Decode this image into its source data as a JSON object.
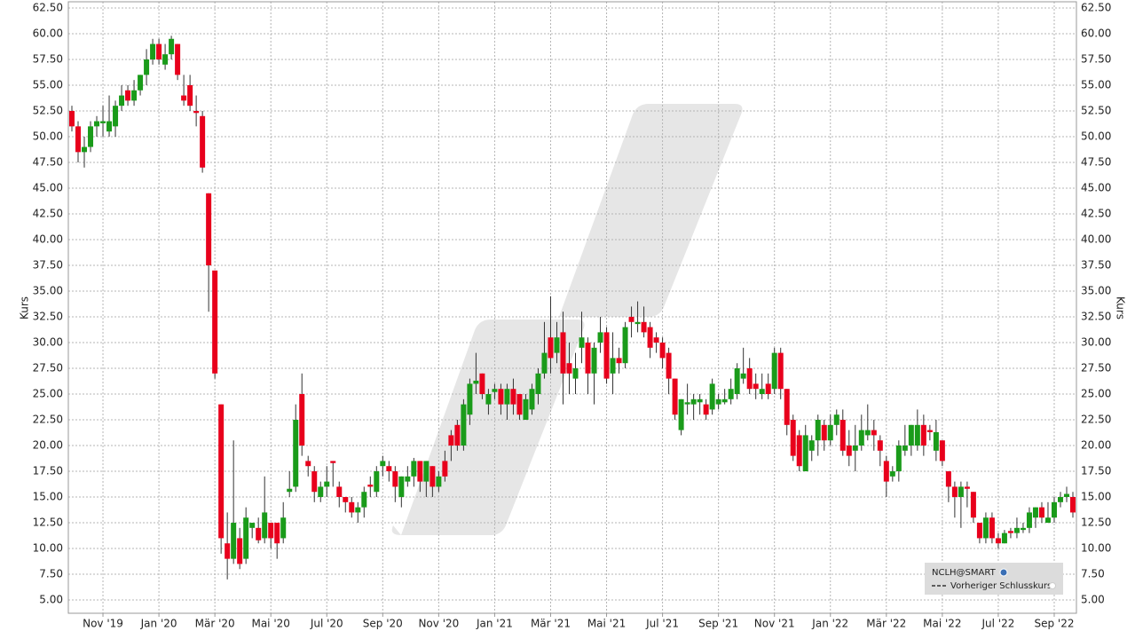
{
  "chart_data": {
    "type": "candlestick",
    "y_label": "Kurs",
    "up_color": "#1a9b1a",
    "down_color": "#e8001c",
    "ylim": [
      3.71,
      63.1
    ],
    "yticks": [
      {
        "value": 5,
        "label": "5.00"
      },
      {
        "value": 7.5,
        "label": "7.50"
      },
      {
        "value": 10,
        "label": "10.00"
      },
      {
        "value": 12.5,
        "label": "12.50"
      },
      {
        "value": 15,
        "label": "15.00"
      },
      {
        "value": 17.5,
        "label": "17.50"
      },
      {
        "value": 20,
        "label": "20.00"
      },
      {
        "value": 22.5,
        "label": "22.50"
      },
      {
        "value": 25,
        "label": "25.00"
      },
      {
        "value": 27.5,
        "label": "27.50"
      },
      {
        "value": 30,
        "label": "30.00"
      },
      {
        "value": 32.5,
        "label": "32.50"
      },
      {
        "value": 35,
        "label": "35.00"
      },
      {
        "value": 37.5,
        "label": "37.50"
      },
      {
        "value": 40,
        "label": "40.00"
      },
      {
        "value": 42.5,
        "label": "42.50"
      },
      {
        "value": 45,
        "label": "45.00"
      },
      {
        "value": 47.5,
        "label": "47.50"
      },
      {
        "value": 50,
        "label": "50.00"
      },
      {
        "value": 52.5,
        "label": "52.50"
      },
      {
        "value": 55,
        "label": "55.00"
      },
      {
        "value": 57.5,
        "label": "57.50"
      },
      {
        "value": 60,
        "label": "60.00"
      },
      {
        "value": 62.5,
        "label": "62.50"
      }
    ],
    "grid": true,
    "legend": {
      "position": "lower right",
      "symbol": "NCLH@SMART",
      "previous_close": "Vorheriger Schlusskurs"
    },
    "categories": [
      null,
      null,
      null,
      null,
      null,
      "Nov '19",
      null,
      null,
      null,
      null,
      null,
      null,
      null,
      null,
      "Jan '20",
      null,
      null,
      null,
      null,
      null,
      null,
      null,
      null,
      "Mär '20",
      null,
      null,
      null,
      null,
      null,
      null,
      null,
      null,
      "Mai '20",
      null,
      null,
      null,
      null,
      null,
      null,
      null,
      null,
      "Jul '20",
      null,
      null,
      null,
      null,
      null,
      null,
      null,
      null,
      "Sep '20",
      null,
      null,
      null,
      null,
      null,
      null,
      null,
      null,
      "Nov '20",
      null,
      null,
      null,
      null,
      null,
      null,
      null,
      null,
      "Jan '21",
      null,
      null,
      null,
      null,
      null,
      null,
      null,
      null,
      "Mär '21",
      null,
      null,
      null,
      null,
      null,
      null,
      null,
      null,
      "Mai '21",
      null,
      null,
      null,
      null,
      null,
      null,
      null,
      null,
      "Jul '21",
      null,
      null,
      null,
      null,
      null,
      null,
      null,
      null,
      "Sep '21",
      null,
      null,
      null,
      null,
      null,
      null,
      null,
      null,
      "Nov '21",
      null,
      null,
      null,
      null,
      null,
      null,
      null,
      null,
      "Jan '22",
      null,
      null,
      null,
      null,
      null,
      null,
      null,
      null,
      "Mär '22",
      null,
      null,
      null,
      null,
      null,
      null,
      null,
      null,
      "Mai '22",
      null,
      null,
      null,
      null,
      null,
      null,
      null,
      null,
      "Jul '22",
      null,
      null,
      null,
      null,
      null,
      null,
      null,
      null,
      "Sep '22",
      null,
      null,
      null
    ],
    "open": [
      52.5,
      51,
      48.5,
      49,
      51,
      51.3,
      50.5,
      51,
      53,
      54.5,
      53.5,
      54.5,
      56,
      57.5,
      59,
      57,
      58,
      59,
      54,
      55,
      52.5,
      52,
      44.5,
      37,
      24,
      10.5,
      9,
      11,
      9,
      12,
      12,
      11,
      12.5,
      12.5,
      11,
      15.5,
      16,
      25,
      18.5,
      17.5,
      15,
      16,
      18.5,
      16,
      15,
      14.5,
      13.5,
      14,
      16.2,
      15.5,
      18,
      18,
      17.5,
      15,
      16.5,
      17,
      18.5,
      16.5,
      18,
      16,
      18.5,
      21,
      22,
      20,
      23,
      26,
      27,
      24,
      25.2,
      25.5,
      24,
      25.5,
      25,
      22.5,
      23.5,
      25,
      27,
      30.5,
      29,
      31,
      28,
      26.5,
      29.5,
      30,
      27,
      30,
      31,
      27,
      28.5,
      28,
      32.5,
      31.8,
      32,
      31.5,
      30.5,
      30,
      29,
      26.5,
      21.5,
      24,
      24,
      24.2,
      24,
      23.5,
      24,
      24.2,
      24.5,
      25,
      26.5,
      27.5,
      26,
      25,
      26,
      25.5,
      29,
      25.5,
      22.5,
      21,
      17.5,
      19.5,
      20.5,
      22,
      20.5,
      22,
      22.5,
      20,
      19.5,
      20,
      21,
      21.5,
      20.5,
      18.5,
      17,
      17.5,
      19.5,
      20,
      20,
      22,
      21.5,
      19.5,
      20.5,
      17.5,
      16,
      15,
      16,
      15.5,
      12.5,
      11,
      13,
      11,
      10.5,
      11.7,
      11.5,
      11.8,
      12,
      13,
      14,
      12.5,
      13,
      14.5,
      15,
      15
    ],
    "high": [
      53,
      51.5,
      50,
      51.5,
      52,
      53,
      54,
      53.5,
      55,
      55,
      55.5,
      56,
      58.5,
      59.5,
      59.5,
      59,
      59.8,
      59,
      56,
      56,
      54,
      52.5,
      44.5,
      37,
      24,
      13.5,
      20.5,
      12,
      14,
      12.5,
      13,
      17,
      12.5,
      12.5,
      14.5,
      17.5,
      24,
      27,
      19,
      18,
      16.5,
      18,
      18.5,
      16.5,
      15,
      15,
      14.5,
      16,
      17,
      18,
      19,
      18.5,
      18,
      17,
      18,
      18.8,
      18.5,
      18.5,
      18,
      17.5,
      19.5,
      21.5,
      22.5,
      24.5,
      26.5,
      29,
      27,
      25.5,
      26,
      26,
      26,
      26.5,
      25,
      25,
      26,
      27.5,
      32,
      34.5,
      32,
      33,
      30,
      29,
      33,
      30.5,
      30,
      32.5,
      31.5,
      31,
      29.5,
      32,
      33.5,
      34,
      33.5,
      32,
      31,
      30.5,
      29.5,
      26.5,
      24.5,
      26,
      25,
      25,
      24.5,
      26.5,
      25,
      25.5,
      26.5,
      28,
      29.5,
      28.5,
      27,
      27,
      27,
      29.5,
      29.5,
      25.5,
      23,
      21.5,
      22,
      21,
      23,
      22.5,
      23,
      23.5,
      23.5,
      21.5,
      22,
      23,
      24,
      22.5,
      21,
      19,
      18,
      20.5,
      22,
      22,
      23.5,
      23,
      22,
      22.5,
      20.5,
      17.5,
      16.5,
      16.5,
      16.5,
      15.5,
      12.5,
      13.5,
      13.5,
      11.5,
      11.8,
      12,
      13,
      12.5,
      14,
      14,
      14.5,
      14.5,
      15,
      15.5,
      16,
      15.5
    ],
    "low": [
      50.5,
      47.5,
      47,
      48.5,
      50,
      50,
      50,
      50,
      52.5,
      53,
      53,
      54,
      55,
      57,
      57,
      56.5,
      57.5,
      55.5,
      53,
      52.5,
      51,
      46.5,
      33,
      26.5,
      9.5,
      7,
      8.5,
      8,
      8.5,
      11,
      10.5,
      10.5,
      10,
      9,
      10.5,
      15,
      15.5,
      19,
      17,
      14.5,
      14.5,
      15,
      16,
      14,
      13.5,
      13,
      12.5,
      13,
      15,
      15,
      17,
      16.5,
      14.5,
      14,
      16,
      16,
      15.5,
      15,
      15,
      15.5,
      16.5,
      18.5,
      19.5,
      19.5,
      22,
      25,
      24.5,
      23,
      24.5,
      23,
      22.5,
      23,
      22.5,
      22.5,
      23,
      24,
      26.5,
      27,
      28,
      24,
      25,
      25,
      28,
      25,
      24,
      29,
      26,
      25,
      27,
      27.5,
      30.5,
      31,
      30.5,
      28.5,
      29,
      27.5,
      25,
      22.5,
      21,
      23,
      22.5,
      23,
      22.5,
      23,
      23.5,
      24,
      24,
      24.5,
      26,
      25,
      24.5,
      24.5,
      24.5,
      25,
      24.5,
      21,
      18.5,
      17.5,
      17.5,
      18.5,
      19,
      19.5,
      20,
      21,
      19,
      18,
      17.5,
      19.5,
      20.5,
      19.5,
      18,
      15,
      16.5,
      16.5,
      19,
      19,
      19.5,
      19,
      20.5,
      18.5,
      18,
      14.5,
      13,
      12,
      14,
      12.5,
      10.5,
      10.5,
      10.5,
      10,
      10.5,
      11,
      11,
      11.5,
      11.5,
      12,
      12.5,
      12.5,
      12.5,
      14,
      14.5,
      13
    ],
    "close": [
      51,
      48.5,
      49,
      51,
      51.5,
      51.5,
      51.5,
      53,
      54,
      53.5,
      54.5,
      56,
      57.5,
      59,
      57.5,
      58,
      59.5,
      56,
      53.5,
      53,
      52.3,
      47,
      37.5,
      27,
      11,
      9,
      12.5,
      8.5,
      13,
      12.5,
      10.8,
      13.5,
      11,
      10.5,
      13,
      15.8,
      22.5,
      20,
      18,
      15.5,
      16,
      16.5,
      18.3,
      15,
      14.5,
      13.5,
      14,
      15.5,
      16,
      17.5,
      18.5,
      17.5,
      16,
      17,
      17,
      18.5,
      16.5,
      18.5,
      16,
      17,
      17,
      20,
      20,
      24,
      26,
      26.3,
      25,
      25,
      25.5,
      24,
      25.5,
      24,
      23,
      24.5,
      25.5,
      27,
      29,
      28.5,
      30.5,
      27,
      27,
      27.5,
      30.5,
      27,
      29.5,
      31,
      26.5,
      28.5,
      28,
      31.5,
      32,
      32,
      31,
      29.5,
      30,
      28.5,
      26.5,
      23,
      24.5,
      24.2,
      24.5,
      24.5,
      23,
      26,
      24.5,
      24.5,
      25.5,
      27.5,
      27,
      25.5,
      25.5,
      25.5,
      25,
      29,
      25.5,
      22,
      19,
      18,
      21,
      20.5,
      22.5,
      20.5,
      22,
      23,
      19.5,
      19,
      20,
      21.5,
      21.5,
      21,
      19.5,
      16.5,
      17.5,
      20,
      20,
      22,
      22,
      20,
      21.3,
      21.3,
      18.5,
      16,
      15,
      16,
      15.8,
      13,
      11,
      13,
      11,
      10.5,
      11.5,
      11.5,
      12,
      12,
      13.5,
      14,
      13,
      13,
      14.5,
      15,
      15.3,
      13.5
    ]
  }
}
